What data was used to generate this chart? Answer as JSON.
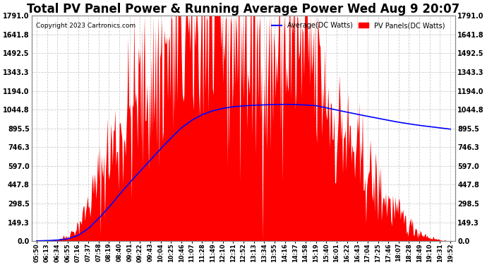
{
  "title": "Total PV Panel Power & Running Average Power Wed Aug 9 20:07",
  "copyright": "Copyright 2023 Cartronics.com",
  "legend_labels": [
    "Average(DC Watts)",
    "PV Panels(DC Watts)"
  ],
  "legend_colors": [
    "blue",
    "red"
  ],
  "yticks": [
    0.0,
    149.3,
    298.5,
    447.8,
    597.0,
    746.3,
    895.5,
    1044.8,
    1194.0,
    1343.3,
    1492.5,
    1641.8,
    1791.0
  ],
  "ymax": 1791.0,
  "ymin": 0.0,
  "bg_color": "#ffffff",
  "plot_bg_color": "#ffffff",
  "grid_color": "#cccccc",
  "bar_color": "red",
  "line_color": "blue",
  "title_fontsize": 12,
  "xtick_labels": [
    "05:50",
    "06:13",
    "06:34",
    "06:55",
    "07:16",
    "07:37",
    "07:58",
    "08:19",
    "08:40",
    "09:01",
    "09:22",
    "09:43",
    "10:04",
    "10:25",
    "10:46",
    "11:07",
    "11:28",
    "11:49",
    "12:10",
    "12:31",
    "12:52",
    "13:13",
    "13:34",
    "13:55",
    "14:16",
    "14:37",
    "14:58",
    "15:19",
    "15:40",
    "16:01",
    "16:22",
    "16:43",
    "17:04",
    "17:25",
    "17:46",
    "18:07",
    "18:28",
    "18:49",
    "19:10",
    "19:31",
    "19:52"
  ],
  "base_envelope": [
    0,
    5,
    15,
    40,
    120,
    280,
    480,
    680,
    850,
    1000,
    1120,
    1250,
    1380,
    1500,
    1600,
    1660,
    1700,
    1730,
    1720,
    1680,
    1550,
    1480,
    1420,
    1430,
    1500,
    1480,
    1400,
    1380,
    1100,
    900,
    780,
    650,
    520,
    400,
    290,
    200,
    130,
    70,
    30,
    10,
    0
  ],
  "avg_values": [
    2,
    4,
    8,
    18,
    45,
    100,
    180,
    270,
    370,
    465,
    555,
    645,
    735,
    820,
    900,
    960,
    1005,
    1035,
    1055,
    1068,
    1075,
    1080,
    1083,
    1086,
    1087,
    1086,
    1082,
    1077,
    1060,
    1042,
    1025,
    1008,
    992,
    976,
    960,
    945,
    932,
    920,
    910,
    900,
    890
  ]
}
